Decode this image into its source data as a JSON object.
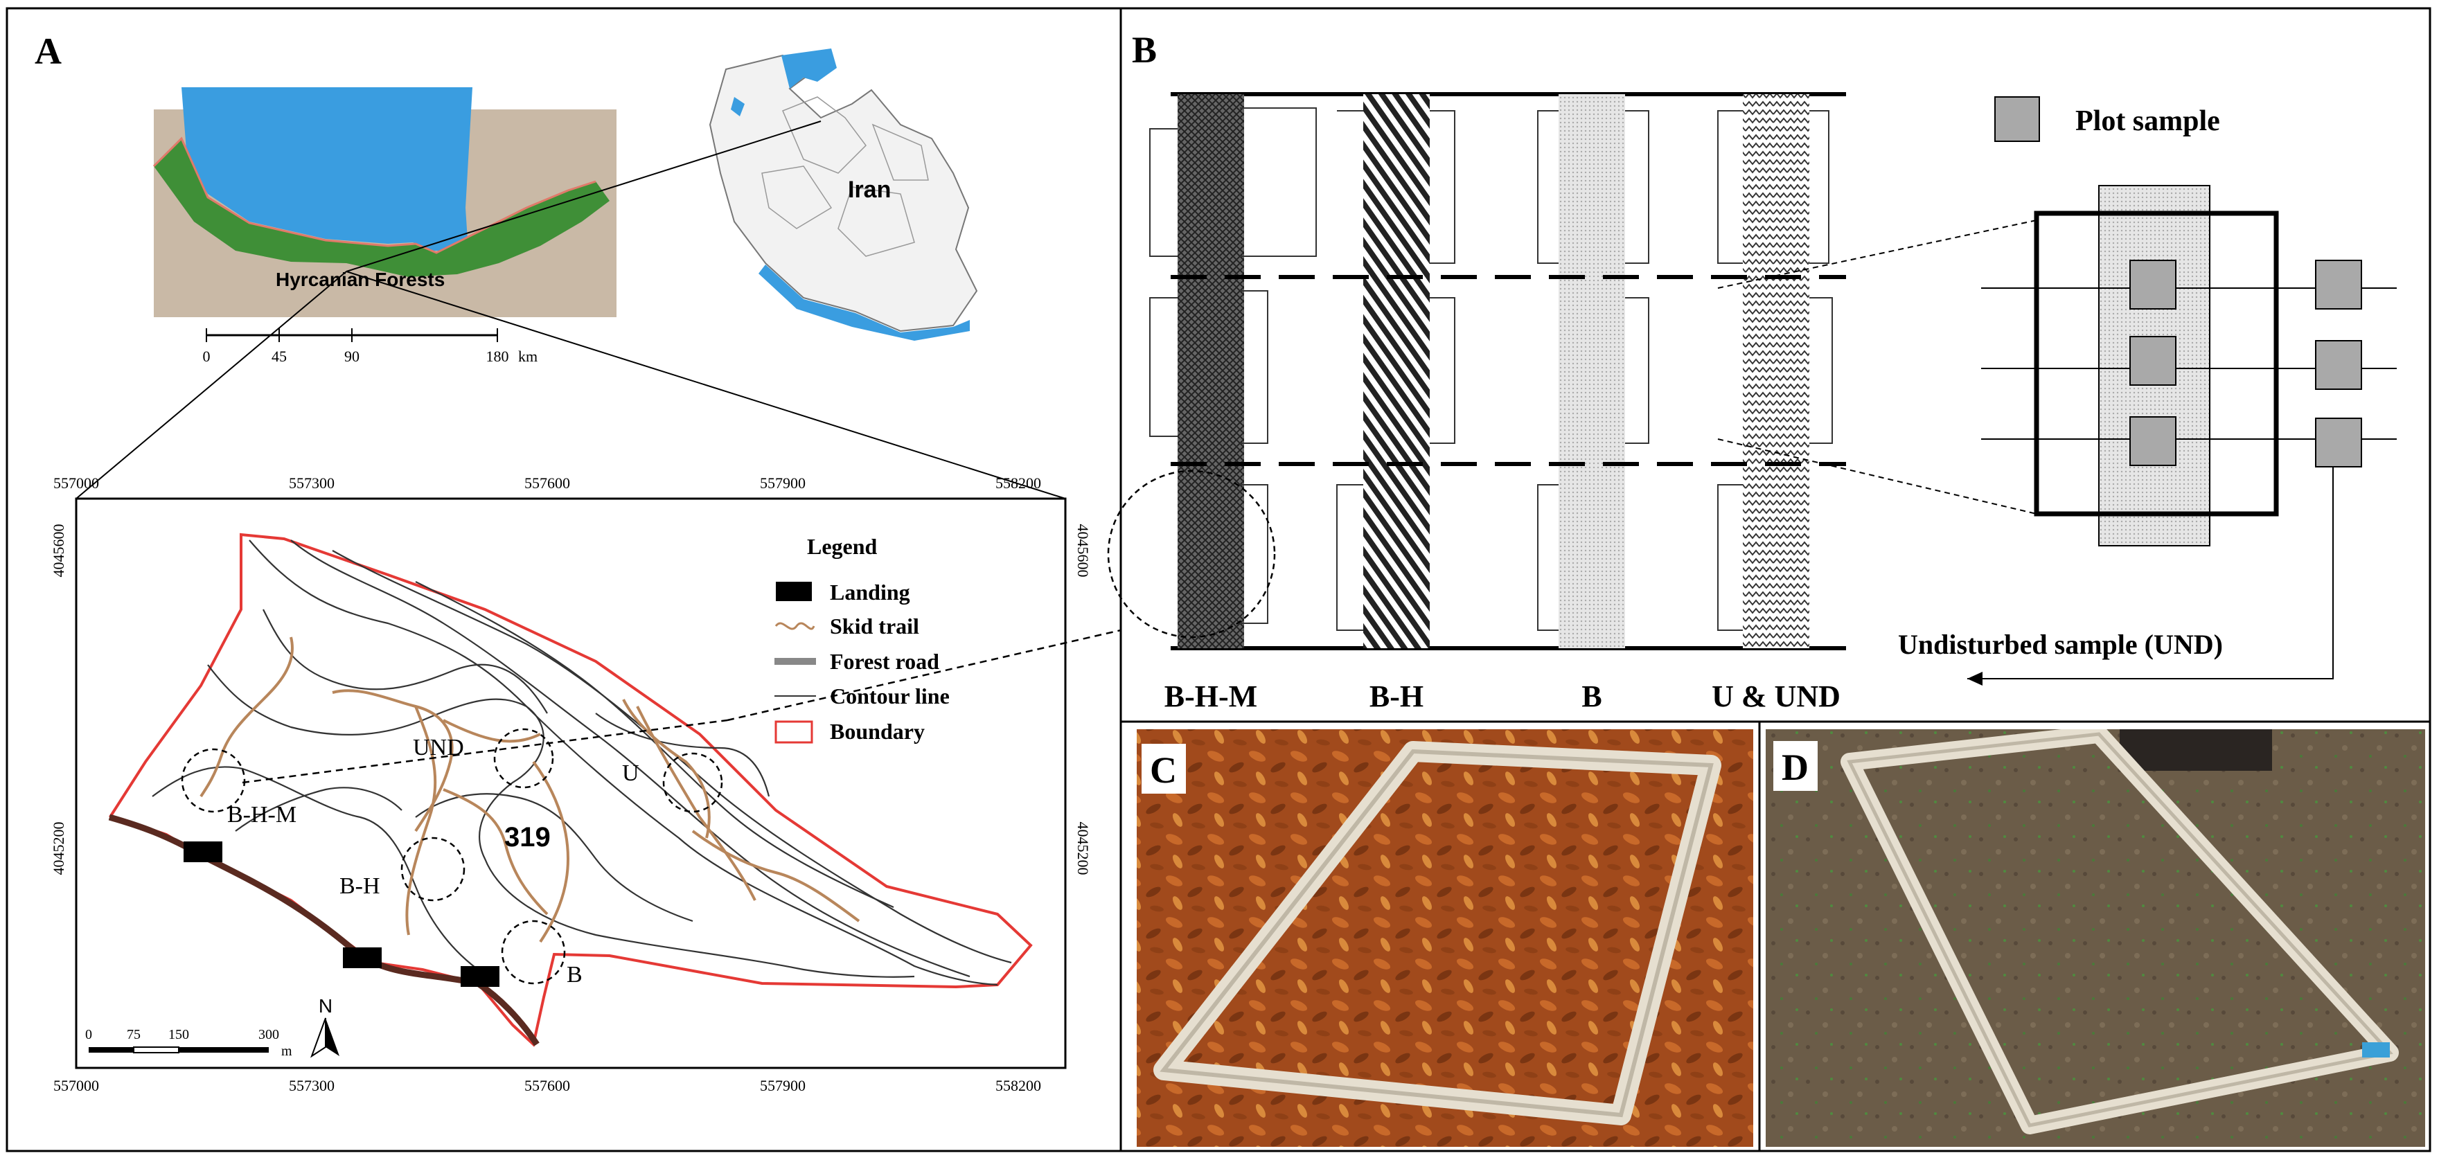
{
  "panels": {
    "a": {
      "letter": "A"
    },
    "b": {
      "letter": "B"
    },
    "c": {
      "letter": "C"
    },
    "d": {
      "letter": "D"
    }
  },
  "overview_map": {
    "region_label": "Hyrcanian Forests",
    "country_label": "Iran",
    "scale_ticks": [
      "0",
      "45",
      "90",
      "180"
    ],
    "scale_unit": "km"
  },
  "detail_map": {
    "x_ticks": [
      "557000",
      "557300",
      "557600",
      "557900",
      "558200"
    ],
    "y_ticks": [
      "4045600",
      "4045200"
    ],
    "compartment_label": "319",
    "site_labels": {
      "bhm": "B-H-M",
      "bh": "B-H",
      "b": "B",
      "u": "U",
      "und": "UND"
    },
    "legend": {
      "title": "Legend",
      "items": [
        {
          "label": "Landing",
          "symbol": "black-rectangle"
        },
        {
          "label": "Skid trail",
          "symbol": "brown-wavy-line"
        },
        {
          "label": "Forest road",
          "symbol": "thick-gray-line"
        },
        {
          "label": "Contour line",
          "symbol": "thin-dark-line"
        },
        {
          "label": "Boundary",
          "symbol": "red-outline-rectangle"
        }
      ]
    },
    "scale_ticks": [
      "0",
      "75",
      "150",
      "300"
    ],
    "scale_unit": "m",
    "north_label": "N",
    "colors": {
      "boundary": "#e53935",
      "skid_trail": "#b8865b",
      "road": "#5a2a20",
      "landing": "#000000"
    }
  },
  "design": {
    "strip_labels": [
      "B-H-M",
      "B-H",
      "B",
      "U & UND"
    ],
    "plot_sample_label": "Plot sample",
    "undisturbed_label": "Undisturbed sample (UND)"
  },
  "photos": {
    "c": {
      "subject": "wooden plot frame on leaf litter",
      "colors": {
        "litter": "#a14a1c"
      }
    },
    "d": {
      "subject": "wooden plot frame on bare soil",
      "colors": {
        "soil": "#6b5c48"
      }
    }
  }
}
